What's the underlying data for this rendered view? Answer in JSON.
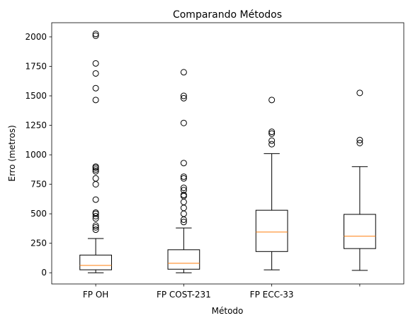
{
  "chart_data": {
    "type": "boxplot",
    "title": "Comparando Métodos",
    "xlabel": "Método",
    "ylabel": "Erro (metros)",
    "ylim": [
      -95,
      2120
    ],
    "yticks": [
      0,
      250,
      500,
      750,
      1000,
      1250,
      1500,
      1750,
      2000
    ],
    "grid": false,
    "legend": "none",
    "box_color": "#000000",
    "median_color": "#ff7f0e",
    "categories": [
      "FP OH",
      "FP COST-231",
      "FP ECC-33",
      ""
    ],
    "boxes": [
      {
        "label": "FP OH",
        "whisker_low": 0,
        "q1": 25,
        "median": 62,
        "q3": 150,
        "whisker_high": 290,
        "outliers": [
          365,
          385,
          400,
          460,
          480,
          500,
          510,
          620,
          750,
          800,
          860,
          875,
          890,
          900,
          1465,
          1565,
          1690,
          1775,
          2010,
          2025
        ]
      },
      {
        "label": "FP COST-231",
        "whisker_low": 0,
        "q1": 30,
        "median": 80,
        "q3": 195,
        "whisker_high": 380,
        "outliers": [
          430,
          450,
          500,
          550,
          600,
          650,
          660,
          700,
          720,
          800,
          815,
          930,
          1270,
          1480,
          1500,
          1700
        ]
      },
      {
        "label": "FP ECC-33",
        "whisker_low": 25,
        "q1": 180,
        "median": 345,
        "q3": 530,
        "whisker_high": 1010,
        "outliers": [
          1090,
          1120,
          1180,
          1195,
          1465
        ]
      },
      {
        "label": "",
        "whisker_low": 20,
        "q1": 205,
        "median": 310,
        "q3": 495,
        "whisker_high": 900,
        "outliers": [
          1100,
          1125,
          1525
        ]
      }
    ]
  }
}
